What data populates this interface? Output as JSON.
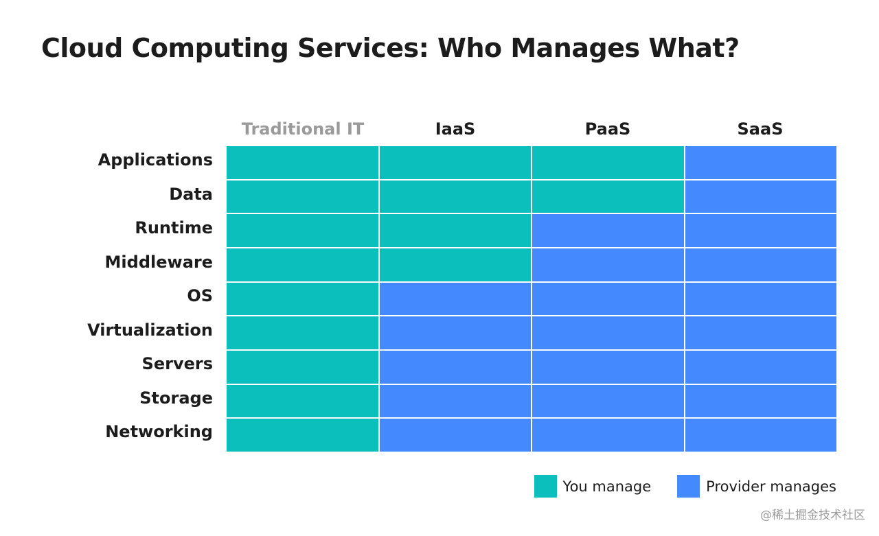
{
  "title": "Cloud Computing Services: Who Manages What?",
  "columns": [
    {
      "label": "Traditional IT"
    },
    {
      "label": "IaaS"
    },
    {
      "label": "PaaS"
    },
    {
      "label": "SaaS"
    }
  ],
  "rows": [
    {
      "label": "Applications",
      "cells": [
        "you",
        "you",
        "you",
        "provider"
      ]
    },
    {
      "label": "Data",
      "cells": [
        "you",
        "you",
        "you",
        "provider"
      ]
    },
    {
      "label": "Runtime",
      "cells": [
        "you",
        "you",
        "provider",
        "provider"
      ]
    },
    {
      "label": "Middleware",
      "cells": [
        "you",
        "you",
        "provider",
        "provider"
      ]
    },
    {
      "label": "OS",
      "cells": [
        "you",
        "provider",
        "provider",
        "provider"
      ]
    },
    {
      "label": "Virtualization",
      "cells": [
        "you",
        "provider",
        "provider",
        "provider"
      ]
    },
    {
      "label": "Servers",
      "cells": [
        "you",
        "provider",
        "provider",
        "provider"
      ]
    },
    {
      "label": "Storage",
      "cells": [
        "you",
        "provider",
        "provider",
        "provider"
      ]
    },
    {
      "label": "Networking",
      "cells": [
        "you",
        "provider",
        "provider",
        "provider"
      ]
    }
  ],
  "legend": {
    "you": {
      "label": "You manage",
      "color": "#0bbfbd"
    },
    "provider": {
      "label": "Provider manages",
      "color": "#4589ff"
    }
  },
  "watermark": "@稀土掘金技术社区"
}
